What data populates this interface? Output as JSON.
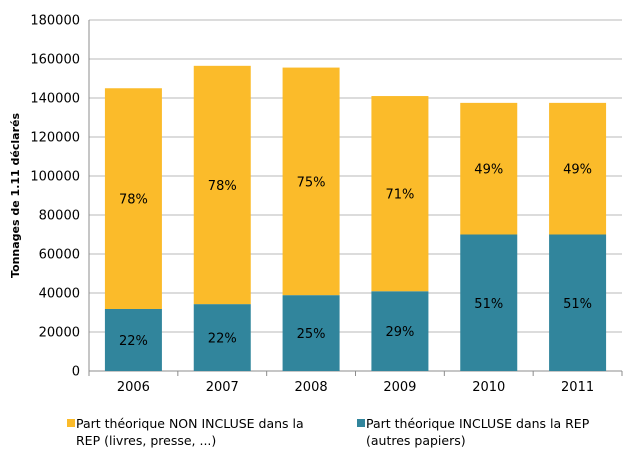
{
  "chart_data": {
    "type": "bar",
    "stacked": true,
    "categories": [
      "2006",
      "2007",
      "2008",
      "2009",
      "2010",
      "2011"
    ],
    "ylabel": "Tonnages de 1.11 déclarés",
    "ylim": [
      0,
      180000
    ],
    "yticks": [
      "0",
      "20000",
      "40000",
      "60000",
      "80000",
      "100000",
      "120000",
      "140000",
      "160000",
      "180000"
    ],
    "grid": true,
    "legend_position": "bottom",
    "series": [
      {
        "name_lines": [
          "Part théorique INCLUSE dans la REP",
          "(autres papiers)"
        ],
        "color": "#31859c",
        "values": [
          31800,
          34300,
          38900,
          40900,
          70000,
          70000
        ],
        "labels": [
          "22%",
          "22%",
          "25%",
          "29%",
          "51%",
          "51%"
        ]
      },
      {
        "name_lines": [
          "Part théorique NON INCLUSE dans la",
          "REP (livres, presse, ...)"
        ],
        "color": "#fbbb2a",
        "values": [
          113200,
          122200,
          116700,
          100100,
          67500,
          67500
        ],
        "labels": [
          "78%",
          "78%",
          "75%",
          "71%",
          "49%",
          "49%"
        ]
      }
    ]
  }
}
